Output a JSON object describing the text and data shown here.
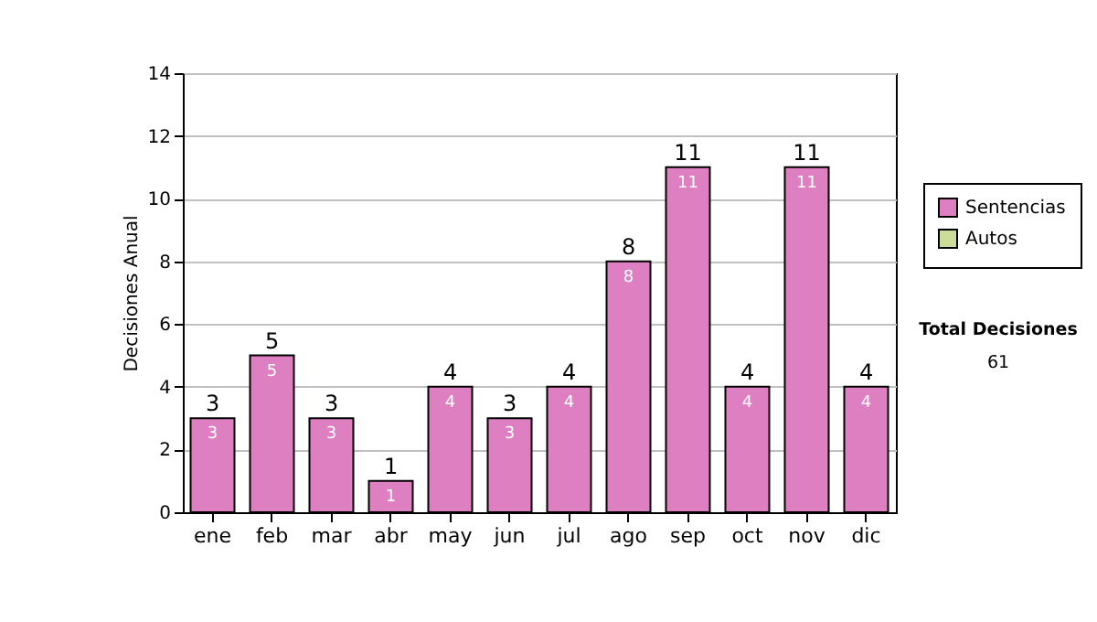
{
  "chart_data": {
    "type": "bar",
    "ylabel": "Decisiones Anual",
    "categories": [
      "ene",
      "feb",
      "mar",
      "abr",
      "may",
      "jun",
      "jul",
      "ago",
      "sep",
      "oct",
      "nov",
      "dic"
    ],
    "stacked": true,
    "series": [
      {
        "name": "Sentencias",
        "color": "#dd7fc0",
        "values": [
          3,
          5,
          3,
          1,
          4,
          3,
          4,
          8,
          11,
          4,
          11,
          4
        ],
        "value_labels": [
          "3",
          "5",
          "3",
          "1",
          "4",
          "3",
          "4",
          "8",
          "11",
          "4",
          "11",
          "4"
        ]
      },
      {
        "name": "Autos",
        "color": "#ccdd99",
        "values": [
          null,
          null,
          null,
          null,
          null,
          null,
          null,
          null,
          null,
          null,
          null,
          null
        ]
      }
    ],
    "totals": [
      "3",
      "5",
      "3",
      "1",
      "4",
      "3",
      "4",
      "8",
      "11",
      "4",
      "11",
      "4"
    ],
    "ylim": [
      0,
      14
    ],
    "yticks": [
      0,
      2,
      4,
      6,
      8,
      10,
      12,
      14
    ],
    "grid": "y",
    "legend": "top right",
    "annotations": [
      "Total Decisiones",
      "61"
    ]
  }
}
